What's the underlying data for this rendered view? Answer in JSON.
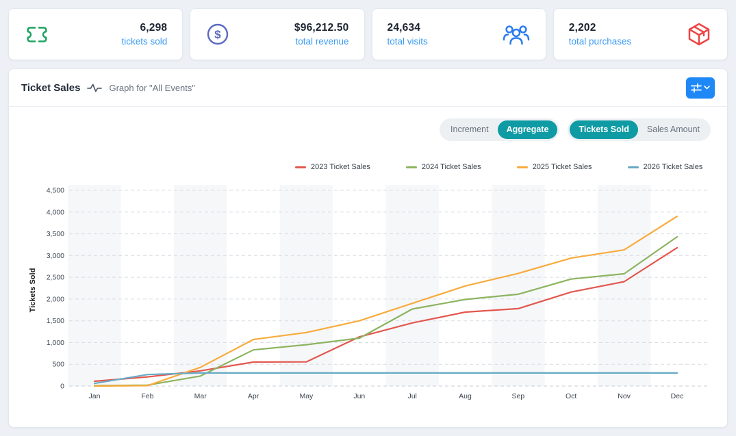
{
  "stats": [
    {
      "value": "6,298",
      "label": "tickets sold",
      "icon": "ticket-icon",
      "icon_color": "#1fa361",
      "icon_side": "left"
    },
    {
      "value": "$96,212.50",
      "label": "total revenue",
      "icon": "dollar-circle-icon",
      "icon_color": "#5b68c2",
      "icon_side": "left"
    },
    {
      "value": "24,634",
      "label": "total visits",
      "icon": "people-icon",
      "icon_color": "#2b7bf0",
      "icon_side": "right"
    },
    {
      "value": "2,202",
      "label": "total purchases",
      "icon": "package-icon",
      "icon_color": "#ee4444",
      "icon_side": "right"
    }
  ],
  "panel": {
    "title": "Ticket Sales",
    "subtitle": "Graph for \"All Events\"",
    "settings_button": {
      "icons": [
        "sliders-icon",
        "chevron-down-icon"
      ],
      "color": "#1e88f6"
    },
    "toggles": [
      {
        "options": [
          "Increment",
          "Aggregate"
        ],
        "active": "Aggregate"
      },
      {
        "options": [
          "Tickets Sold",
          "Sales Amount"
        ],
        "active": "Tickets Sold"
      }
    ]
  },
  "colors": {
    "page_background": "#edf1f6",
    "card_background": "#ffffff",
    "stat_label_blue": "#3d9bf5",
    "toggle_active_teal": "#0f9ba4",
    "settings_button_blue": "#1e88f6",
    "gridline": "#d8dce2",
    "column_stripe": "#f6f7f9"
  },
  "chart_data": {
    "type": "line",
    "title": "",
    "x": [
      "Jan",
      "Feb",
      "Mar",
      "Apr",
      "May",
      "Jun",
      "Jul",
      "Aug",
      "Sep",
      "Oct",
      "Nov",
      "Dec"
    ],
    "series": [
      {
        "name": "2023 Ticket Sales",
        "color": "#e2574e",
        "values": [
          110,
          210,
          350,
          550,
          555,
          1130,
          1450,
          1700,
          1780,
          2160,
          2400,
          3180
        ]
      },
      {
        "name": "2024 Ticket Sales",
        "color": "#8cb45f",
        "values": [
          10,
          20,
          230,
          830,
          950,
          1100,
          1770,
          1990,
          2110,
          2460,
          2580,
          3430
        ]
      },
      {
        "name": "2025 Ticket Sales",
        "color": "#f8ab3d",
        "values": [
          0,
          10,
          430,
          1070,
          1230,
          1500,
          1900,
          2300,
          2590,
          2940,
          3130,
          3900
        ]
      },
      {
        "name": "2026 Ticket Sales",
        "color": "#67abc5",
        "values": [
          60,
          265,
          300,
          300,
          300,
          300,
          300,
          300,
          300,
          300,
          300,
          300
        ]
      }
    ],
    "xlabel": "",
    "ylabel": "Tickets Sold",
    "ylim": [
      0,
      4500
    ],
    "ytick_step": 500,
    "ytick_labels": [
      "0",
      "500",
      "1,000",
      "1,500",
      "2,000",
      "2,500",
      "3,000",
      "3,500",
      "4,000",
      "4,500"
    ],
    "grid": "dashed-horizontal",
    "column_stripes": "odd-months",
    "legend_position": "top"
  }
}
